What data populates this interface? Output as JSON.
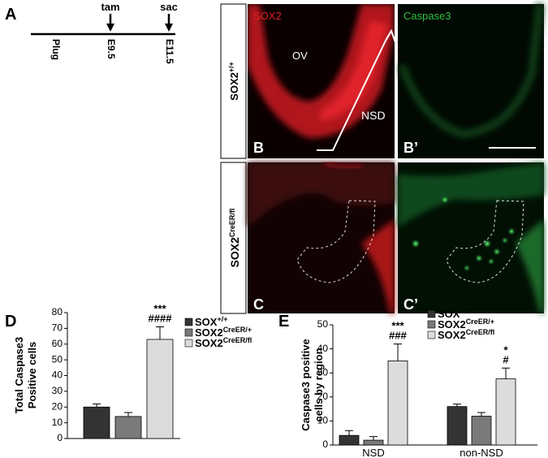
{
  "timeline": {
    "label": "A",
    "stages": [
      "Plug",
      "E9.5",
      "E11.5"
    ],
    "events": [
      "tam",
      "sac"
    ]
  },
  "micrographs": {
    "row_labels": [
      {
        "text": "SOX2",
        "sup": "+/+"
      },
      {
        "text": "SOX2",
        "sup": "CreER/fl"
      }
    ],
    "stains": [
      "SOX2",
      "Caspase3"
    ],
    "panels": [
      "B",
      "B’",
      "C",
      "C’"
    ],
    "annotations": [
      "OV",
      "NSD"
    ]
  },
  "chart_data": [
    {
      "type": "bar",
      "panel": "D",
      "ylabel": [
        "Total Caspase3",
        "Positive cells"
      ],
      "categories": [
        null
      ],
      "series": [
        {
          "name": "SOX",
          "sup": "+/+",
          "color": "#333333",
          "values": [
            20
          ],
          "errors": [
            2
          ]
        },
        {
          "name": "SOX2",
          "sup": "CreER/+",
          "color": "#7a7a7a",
          "values": [
            14
          ],
          "errors": [
            2.5
          ]
        },
        {
          "name": "SOX2",
          "sup": "CreER/fl",
          "color": "#dcdcdc",
          "values": [
            63
          ],
          "errors": [
            8
          ],
          "significance": [
            [
              "***",
              "####"
            ]
          ]
        }
      ],
      "ylim": [
        0,
        80
      ],
      "yticks": [
        0,
        10,
        20,
        30,
        40,
        50,
        60,
        70,
        80
      ]
    },
    {
      "type": "bar",
      "panel": "E",
      "ylabel": [
        "Caspase3 positive",
        "cells by region"
      ],
      "categories": [
        "NSD",
        "non-NSD"
      ],
      "series": [
        {
          "name": "SOX",
          "sup": "+/+",
          "color": "#333333",
          "values": [
            4,
            16
          ],
          "errors": [
            2,
            1
          ]
        },
        {
          "name": "SOX2",
          "sup": "CreER/+",
          "color": "#7a7a7a",
          "values": [
            2,
            12
          ],
          "errors": [
            1.5,
            1.5
          ]
        },
        {
          "name": "SOX2",
          "sup": "CreER/fl",
          "color": "#dcdcdc",
          "values": [
            35,
            27.5
          ],
          "errors": [
            7,
            4.5
          ],
          "significance": [
            [
              "***",
              "###"
            ],
            [
              "*",
              "#"
            ]
          ]
        }
      ],
      "ylim": [
        0,
        50
      ],
      "yticks": [
        0,
        10,
        20,
        30,
        40,
        50
      ]
    }
  ]
}
